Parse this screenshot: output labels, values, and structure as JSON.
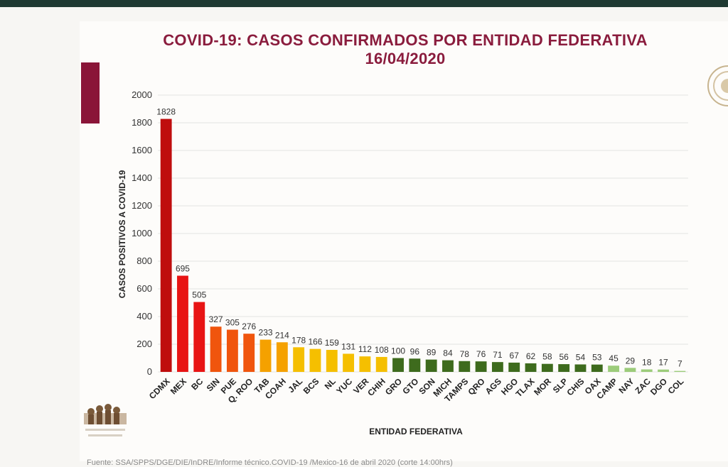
{
  "chart_data": {
    "type": "bar",
    "title": "COVID-19: CASOS CONFIRMADOS POR ENTIDAD FEDERATIVA",
    "subtitle": "16/04/2020",
    "xlabel": "ENTIDAD FEDERATIVA",
    "ylabel": "CASOS POSITIVOS A COVID-19",
    "ylim": [
      0,
      2000
    ],
    "yticks": [
      0,
      200,
      400,
      600,
      800,
      1000,
      1200,
      1400,
      1600,
      1800,
      2000
    ],
    "grid": true,
    "categories": [
      "CDMX",
      "MEX",
      "BC",
      "SIN",
      "PUE",
      "Q. ROO",
      "TAB",
      "COAH",
      "JAL",
      "BCS",
      "NL",
      "YUC",
      "VER",
      "CHIH",
      "GRO",
      "GTO",
      "SON",
      "MICH",
      "TAMPS",
      "QRO",
      "AGS",
      "HGO",
      "TLAX",
      "MOR",
      "SLP",
      "CHIS",
      "OAX",
      "CAMP",
      "NAY",
      "ZAC",
      "DGO",
      "COL"
    ],
    "values": [
      1828,
      695,
      505,
      327,
      305,
      276,
      233,
      214,
      178,
      166,
      159,
      131,
      112,
      108,
      100,
      96,
      89,
      84,
      78,
      76,
      71,
      67,
      62,
      58,
      56,
      54,
      53,
      45,
      29,
      18,
      17,
      7
    ],
    "bar_colors": [
      "#bf0d0d",
      "#e81414",
      "#e81414",
      "#f0550d",
      "#f0550d",
      "#f0550d",
      "#f5a100",
      "#f5a100",
      "#f5bf00",
      "#f5bf00",
      "#f5bf00",
      "#f5bf00",
      "#f5bf00",
      "#f5bf00",
      "#3e6b1d",
      "#3e6b1d",
      "#3e6b1d",
      "#3e6b1d",
      "#3e6b1d",
      "#3e6b1d",
      "#3e6b1d",
      "#3e6b1d",
      "#3e6b1d",
      "#3e6b1d",
      "#3e6b1d",
      "#3e6b1d",
      "#3e6b1d",
      "#9ccc7a",
      "#9ccc7a",
      "#9ccc7a",
      "#9ccc7a",
      "#9ccc7a"
    ]
  },
  "source": "Fuente: SSA/SPPS/DGE/DIE/InDRE/Informe técnico.COVID-19 /Mexico-16 de abril 2020 (corte 14:00hrs)",
  "colors": {
    "title": "#8a1c3d",
    "accent": "#8a1538",
    "topbar": "#1f3a32"
  }
}
